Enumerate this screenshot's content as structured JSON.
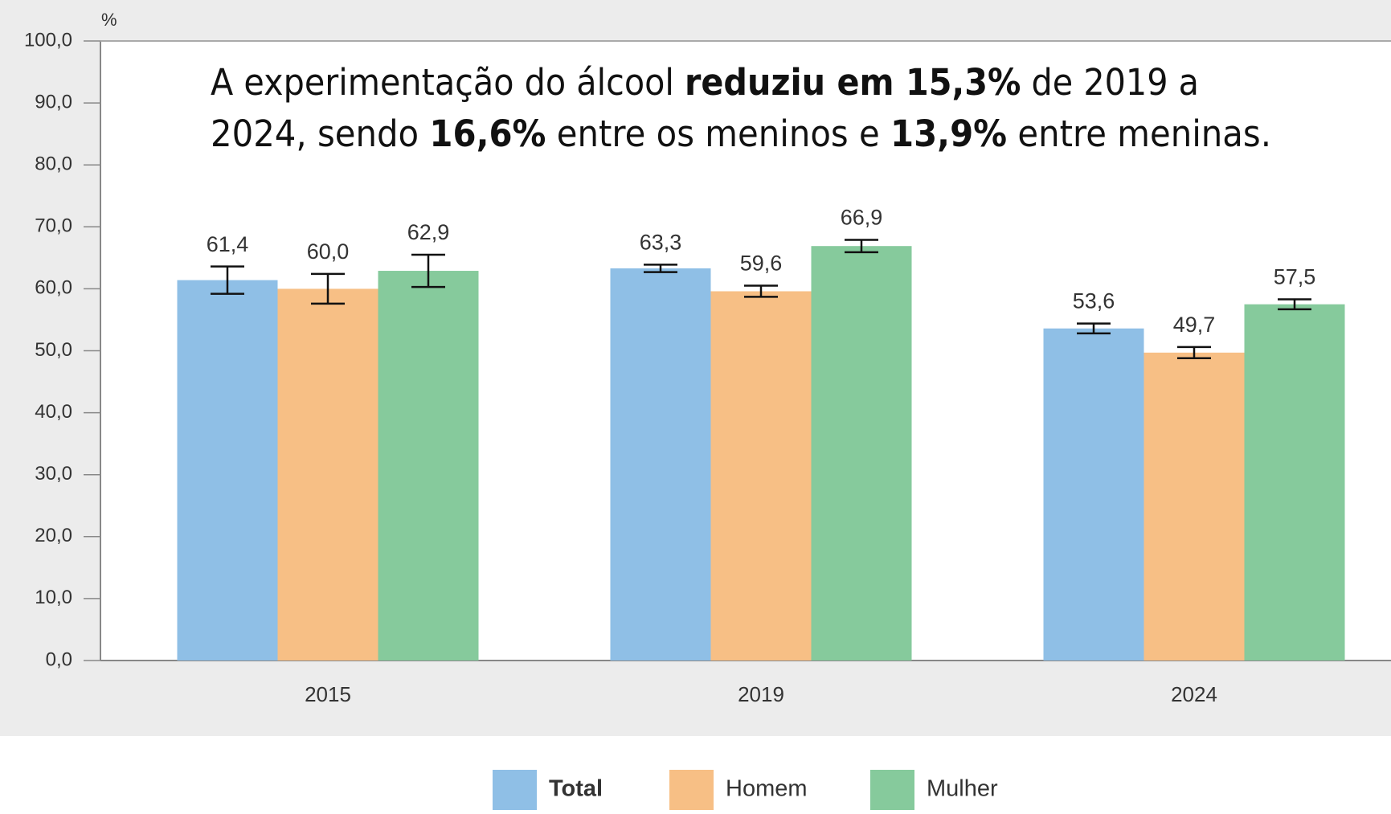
{
  "chart_data": {
    "type": "bar",
    "ylabel": "%",
    "annotation": [
      [
        {
          "text": "A experimentação do álcool ",
          "bold": false
        },
        {
          "text": "reduziu em 15,3%",
          "bold": true
        },
        {
          "text": " de 2019 a",
          "bold": false
        }
      ],
      [
        {
          "text": "2024, sendo ",
          "bold": false
        },
        {
          "text": "16,6%",
          "bold": true
        },
        {
          "text": " entre os meninos e ",
          "bold": false
        },
        {
          "text": "13,9%",
          "bold": true
        },
        {
          "text": " entre meninas.",
          "bold": false
        }
      ]
    ],
    "categories": [
      "2015",
      "2019",
      "2024"
    ],
    "series": [
      {
        "name": "Total",
        "color": "#8fbfe6",
        "values": [
          61.4,
          63.3,
          53.6
        ],
        "value_labels": [
          "61,4",
          "63,3",
          "53,6"
        ],
        "errors": [
          2.2,
          0.6,
          0.8
        ]
      },
      {
        "name": "Homem",
        "color": "#f7bf85",
        "values": [
          60.0,
          59.6,
          49.7
        ],
        "value_labels": [
          "60,0",
          "59,6",
          "49,7"
        ],
        "errors": [
          2.4,
          0.9,
          0.9
        ]
      },
      {
        "name": "Mulher",
        "color": "#86ca9c",
        "values": [
          62.9,
          66.9,
          57.5
        ],
        "value_labels": [
          "62,9",
          "66,9",
          "57,5"
        ],
        "errors": [
          2.6,
          1.0,
          0.8
        ]
      }
    ],
    "ylim": [
      0,
      100
    ],
    "yticks": [
      {
        "value": 0,
        "label": "0,0"
      },
      {
        "value": 10,
        "label": "10,0"
      },
      {
        "value": 20,
        "label": "20,0"
      },
      {
        "value": 30,
        "label": "30,0"
      },
      {
        "value": 40,
        "label": "40,0"
      },
      {
        "value": 50,
        "label": "50,0"
      },
      {
        "value": 60,
        "label": "60,0"
      },
      {
        "value": 70,
        "label": "70,0"
      },
      {
        "value": 80,
        "label": "80,0"
      },
      {
        "value": 90,
        "label": "90,0"
      },
      {
        "value": 100,
        "label": {
          "text": "100,0"
        }
      }
    ]
  }
}
